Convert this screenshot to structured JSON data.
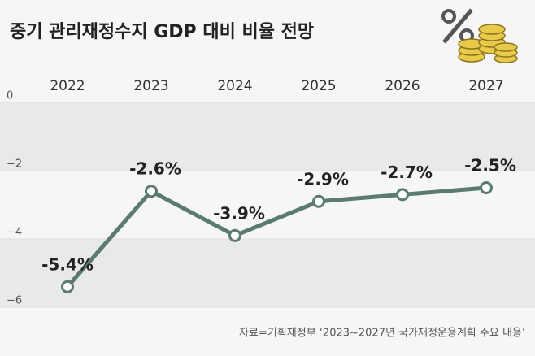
{
  "chart_data": {
    "type": "line",
    "title": "중기 관리재정수지 GDP 대비 비율 전망",
    "categories": [
      "2022",
      "2023",
      "2024",
      "2025",
      "2026",
      "2027"
    ],
    "series": [
      {
        "name": "관리재정수지 GDP 대비 비율",
        "color": "#5b7b6f",
        "values": [
          -5.4,
          -2.6,
          -3.9,
          -2.9,
          -2.7,
          -2.5
        ],
        "value_labels": [
          "-5.4%",
          "-2.6%",
          "-3.9%",
          "-2.9%",
          "-2.7%",
          "-2.5%"
        ]
      }
    ],
    "ylim": [
      -6,
      0
    ],
    "yticks": [
      0,
      {
        "value": -2,
        "label": "−2"
      },
      {
        "value": -4,
        "label": "−4"
      },
      {
        "value": -6,
        "label": "−6"
      }
    ],
    "grid": true,
    "source": "자료=기획재정부 ‘2023~2027년 국가재정운용계획 주요 내용’"
  }
}
